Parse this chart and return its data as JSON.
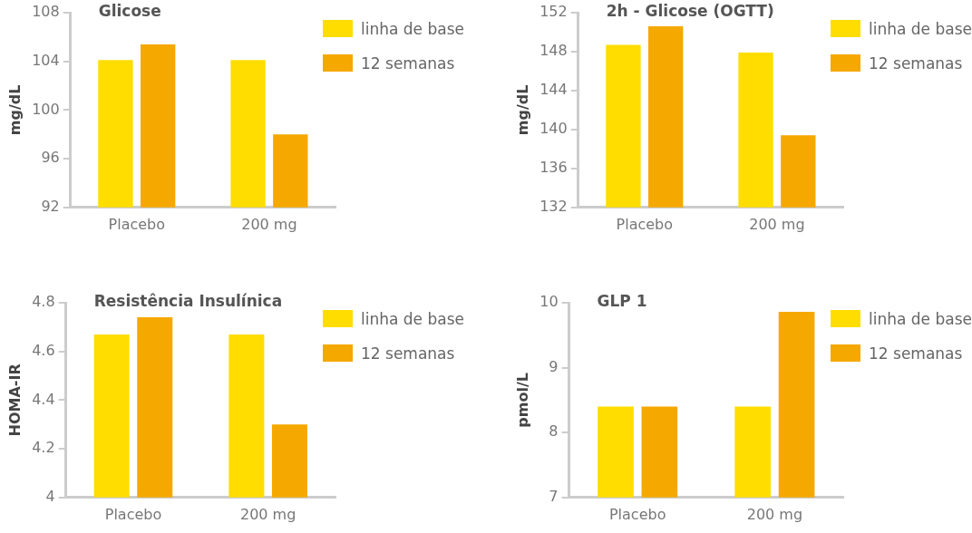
{
  "chart_data": [
    {
      "type": "bar",
      "title": "Glicose",
      "ylabel": "mg/dL",
      "categories": [
        "Placebo",
        "200 mg"
      ],
      "series": [
        {
          "name": "linha de base",
          "color": "#ffdd00",
          "values": [
            104.1,
            104.1
          ]
        },
        {
          "name": "12 semanas",
          "color": "#f5a800",
          "values": [
            105.4,
            98.0
          ]
        }
      ],
      "ylim": [
        92,
        108
      ],
      "yticks": [
        92,
        96,
        100,
        104,
        108
      ],
      "grid": false,
      "legend": "top right"
    },
    {
      "type": "bar",
      "title": "2h - Glicose (OGTT)",
      "ylabel": "mg/dL",
      "categories": [
        "Placebo",
        "200 mg"
      ],
      "series": [
        {
          "name": "linha de base",
          "color": "#ffdd00",
          "values": [
            148.7,
            147.9
          ]
        },
        {
          "name": "12 semanas",
          "color": "#f5a800",
          "values": [
            150.6,
            139.4
          ]
        }
      ],
      "ylim": [
        132,
        152
      ],
      "yticks": [
        132,
        136,
        140,
        144,
        148,
        152
      ],
      "grid": false,
      "legend": "top right"
    },
    {
      "type": "bar",
      "title": "Resistência Insulínica",
      "ylabel": "HOMA-IR",
      "categories": [
        "Placebo",
        "200 mg"
      ],
      "series": [
        {
          "name": "linha de base",
          "color": "#ffdd00",
          "values": [
            4.67,
            4.67
          ]
        },
        {
          "name": "12 semanas",
          "color": "#f5a800",
          "values": [
            4.74,
            4.3
          ]
        }
      ],
      "ylim": [
        4,
        4.8
      ],
      "yticks": [
        4,
        4.2,
        4.4,
        4.6,
        4.8
      ],
      "grid": false,
      "legend": "top right"
    },
    {
      "type": "bar",
      "title": "GLP 1",
      "ylabel": "pmol/L",
      "categories": [
        "Placebo",
        "200 mg"
      ],
      "series": [
        {
          "name": "linha de base",
          "color": "#ffdd00",
          "values": [
            8.4,
            8.4
          ]
        },
        {
          "name": "12 semanas",
          "color": "#f5a800",
          "values": [
            8.4,
            9.86
          ]
        }
      ],
      "ylim": [
        7,
        10
      ],
      "yticks": [
        7,
        8,
        9,
        10
      ],
      "grid": false,
      "legend": "top right"
    }
  ]
}
